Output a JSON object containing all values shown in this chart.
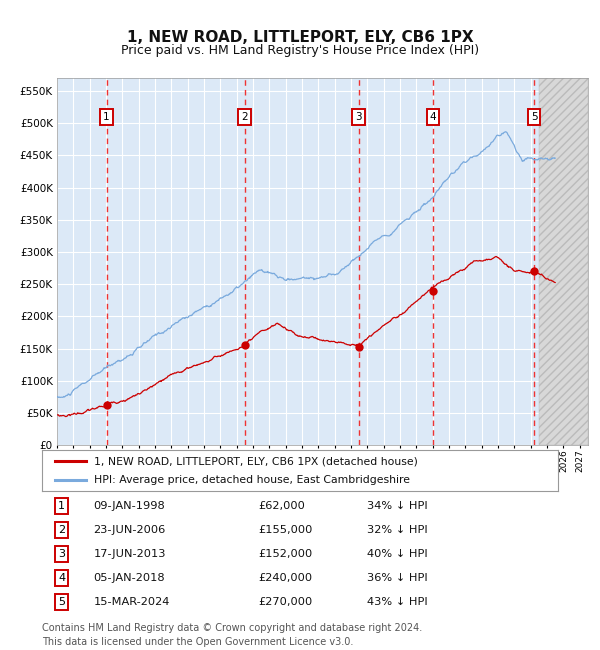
{
  "title": "1, NEW ROAD, LITTLEPORT, ELY, CB6 1PX",
  "subtitle": "Price paid vs. HM Land Registry's House Price Index (HPI)",
  "title_fontsize": 11,
  "subtitle_fontsize": 9,
  "background_color": "#ffffff",
  "plot_bg_color": "#dce9f7",
  "grid_color": "#ffffff",
  "ylim": [
    0,
    570000
  ],
  "yticks": [
    0,
    50000,
    100000,
    150000,
    200000,
    250000,
    300000,
    350000,
    400000,
    450000,
    500000,
    550000
  ],
  "xlim_start": 1995.0,
  "xlim_end": 2027.5,
  "future_start": 2024.5,
  "transactions": [
    {
      "label": "1",
      "date_str": "09-JAN-1998",
      "year": 1998.03,
      "price": 62000,
      "pct": "34% ↓ HPI"
    },
    {
      "label": "2",
      "date_str": "23-JUN-2006",
      "year": 2006.48,
      "price": 155000,
      "pct": "32% ↓ HPI"
    },
    {
      "label": "3",
      "date_str": "17-JUN-2013",
      "year": 2013.46,
      "price": 152000,
      "pct": "40% ↓ HPI"
    },
    {
      "label": "4",
      "date_str": "05-JAN-2018",
      "year": 2018.01,
      "price": 240000,
      "pct": "36% ↓ HPI"
    },
    {
      "label": "5",
      "date_str": "15-MAR-2024",
      "year": 2024.21,
      "price": 270000,
      "pct": "43% ↓ HPI"
    }
  ],
  "legend_line1": "1, NEW ROAD, LITTLEPORT, ELY, CB6 1PX (detached house)",
  "legend_line2": "HPI: Average price, detached house, East Cambridgeshire",
  "red_line_color": "#cc0000",
  "blue_line_color": "#7aaadd",
  "dot_color": "#cc0000",
  "vline_color": "#ee3333",
  "footnote": "Contains HM Land Registry data © Crown copyright and database right 2024.\nThis data is licensed under the Open Government Licence v3.0.",
  "footnote_fontsize": 7
}
